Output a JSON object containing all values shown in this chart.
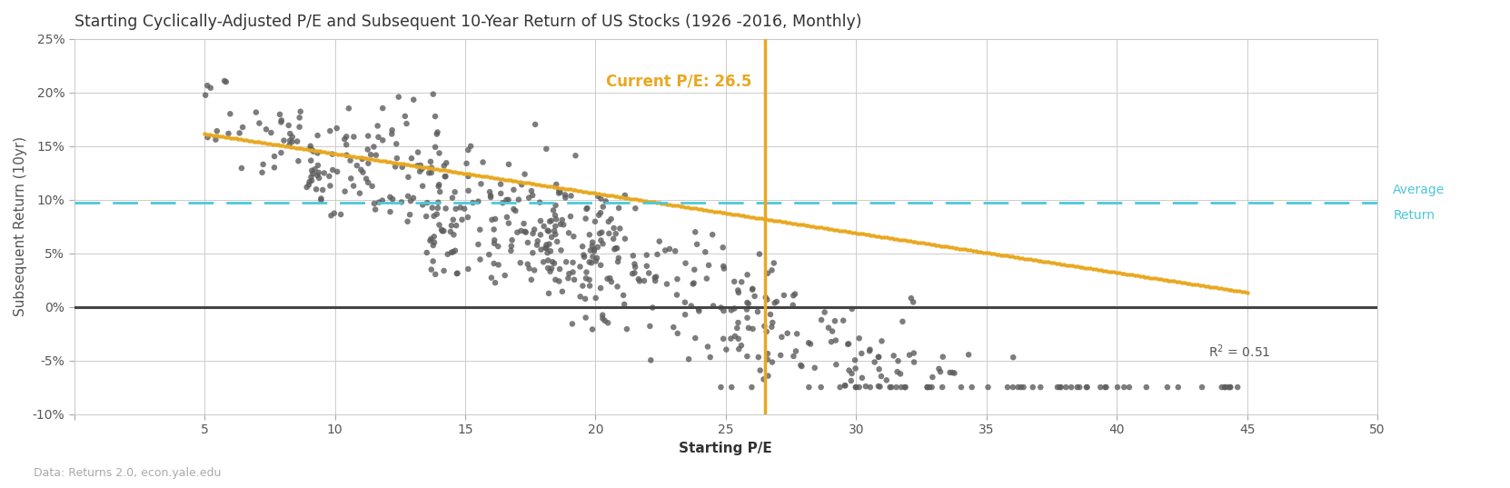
{
  "title": "Starting Cyclically-Adjusted P/E and Subsequent 10-Year Return of US Stocks (1926 -2016, Monthly)",
  "xlabel": "Starting P/E",
  "ylabel": "Subsequent Return (10yr)",
  "xlim": [
    0,
    50
  ],
  "ylim": [
    -0.1,
    0.25
  ],
  "yticks": [
    -0.1,
    -0.05,
    0.0,
    0.05,
    0.1,
    0.15,
    0.2,
    0.25
  ],
  "xticks": [
    0,
    5,
    10,
    15,
    20,
    25,
    30,
    35,
    40,
    45,
    50
  ],
  "current_pe": 26.5,
  "average_return": 0.0975,
  "r_squared": 0.51,
  "scatter_color": "#5C5C5C",
  "trend_color": "#E8A820",
  "vline_color": "#E8A820",
  "avg_line_color": "#4DC8D8",
  "zero_line_color": "#444444",
  "annotation_color": "#E8A820",
  "avg_label_color": "#4DC8D8",
  "rsq_color": "#555555",
  "data_source": "Data: Returns 2.0, econ.yale.edu",
  "background_color": "#FFFFFF",
  "grid_color": "#CCCCCC",
  "title_color": "#333333",
  "title_fontsize": 12.5,
  "axis_label_fontsize": 11,
  "tick_fontsize": 10,
  "scatter_size": 22,
  "scatter_alpha": 0.8
}
